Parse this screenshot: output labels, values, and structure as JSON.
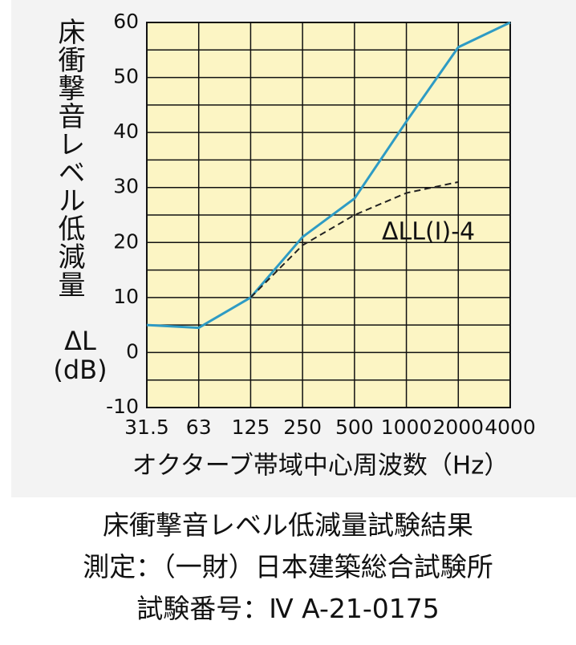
{
  "chart_data": {
    "type": "line",
    "ylabel": [
      "床衝撃音レベル低減量",
      "ΔL",
      "(dB)"
    ],
    "xlabel": "オクターブ帯域中心周波数（Hz）",
    "categories": [
      "31.5",
      "63",
      "125",
      "250",
      "500",
      "1000",
      "2000",
      "4000"
    ],
    "series": [
      {
        "color": "#2e9bc4",
        "dashed": false,
        "values": [
          5,
          4.5,
          10,
          21,
          28,
          42,
          55.5,
          60
        ]
      },
      {
        "color": "#222222",
        "dashed": true,
        "values": [
          null,
          null,
          10,
          19.5,
          25,
          29,
          31,
          null
        ]
      }
    ],
    "annotation": "ΔLL(Ⅰ)-4",
    "ylim": [
      -10,
      60
    ],
    "yticks": [
      -10,
      0,
      10,
      20,
      30,
      40,
      50,
      60
    ],
    "grid": true,
    "caption": [
      "床衝撃音レベル低減量試験結果",
      "測定：（一財）日本建築総合試験所",
      "試験番号：Ⅳ A-21-0175"
    ]
  }
}
